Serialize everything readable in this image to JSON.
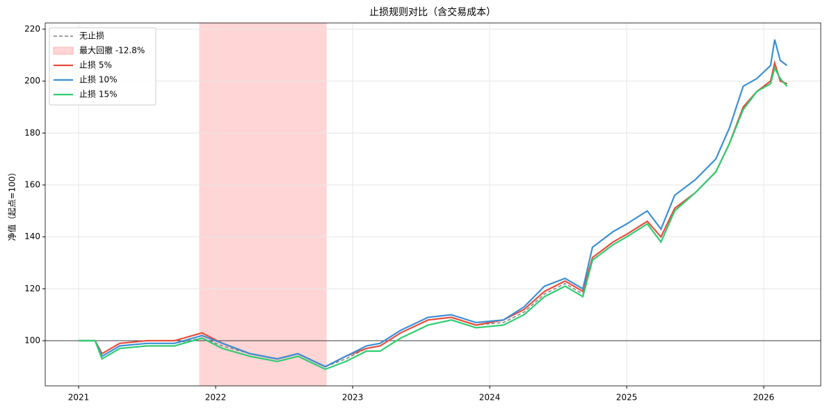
{
  "chart_data": {
    "type": "line",
    "title": "止损规则对比（含交易成本）",
    "y_label": "净值（起点=100）",
    "x": [
      2021.0,
      2021.12,
      2021.17,
      2021.3,
      2021.5,
      2021.7,
      2021.9,
      2022.05,
      2022.25,
      2022.45,
      2022.6,
      2022.8,
      2022.95,
      2023.1,
      2023.2,
      2023.35,
      2023.55,
      2023.72,
      2023.9,
      2024.1,
      2024.25,
      2024.4,
      2024.55,
      2024.68,
      2024.75,
      2024.9,
      2025.0,
      2025.15,
      2025.25,
      2025.35,
      2025.5,
      2025.65,
      2025.75,
      2025.85,
      2025.95,
      2026.05,
      2026.08,
      2026.12,
      2026.17
    ],
    "series": [
      {
        "name": "无止损",
        "color": "#7f7f7f",
        "dashed": true,
        "values": [
          100,
          100,
          94,
          98,
          99,
          99,
          101,
          98,
          95,
          93,
          95,
          90,
          93,
          97,
          98,
          103,
          108,
          109,
          106,
          107,
          111,
          118,
          122,
          118,
          132,
          138,
          141,
          146,
          140,
          151,
          157,
          165,
          176,
          190,
          196,
          200,
          207,
          200,
          199
        ]
      },
      {
        "name": "止损 5%",
        "color": "#e74c3c",
        "values": [
          100,
          100,
          95,
          99,
          100,
          100,
          103,
          99,
          95,
          93,
          95,
          90,
          94,
          97,
          98,
          103,
          108,
          109,
          106,
          108,
          112,
          119,
          123,
          119,
          132,
          138,
          141,
          146,
          140,
          151,
          157,
          165,
          176,
          190,
          196,
          200,
          207,
          200,
          199
        ]
      },
      {
        "name": "止损 10%",
        "color": "#3a8fd6",
        "values": [
          100,
          100,
          94,
          98,
          99,
          99,
          102,
          99,
          95,
          93,
          95,
          90,
          94,
          98,
          99,
          104,
          109,
          110,
          107,
          108,
          113,
          121,
          124,
          120,
          136,
          142,
          145,
          150,
          143,
          156,
          162,
          170,
          182,
          198,
          201,
          206,
          216,
          208,
          206
        ]
      },
      {
        "name": "止损 15%",
        "color": "#2ecc71",
        "values": [
          100,
          100,
          93,
          97,
          98,
          98,
          101,
          97,
          94,
          92,
          94,
          89,
          92,
          96,
          96,
          101,
          106,
          108,
          105,
          106,
          110,
          117,
          121,
          117,
          131,
          137,
          140,
          145,
          138,
          150,
          157,
          165,
          176,
          189,
          196,
          199,
          205,
          201,
          198
        ]
      }
    ],
    "drawdown": {
      "label": "最大回撤 -12.8%",
      "range": [
        2021.88,
        2022.81
      ],
      "color": "#ffb3b3"
    },
    "hline": 100,
    "xlim": [
      2020.756,
      2026.416
    ],
    "xticks": [
      2021,
      2022,
      2023,
      2024,
      2025,
      2026
    ],
    "ylim": [
      82.6,
      222.4
    ],
    "yticks": [
      100,
      120,
      140,
      160,
      180,
      200,
      220
    ],
    "grid": true,
    "legend": "upper left"
  }
}
